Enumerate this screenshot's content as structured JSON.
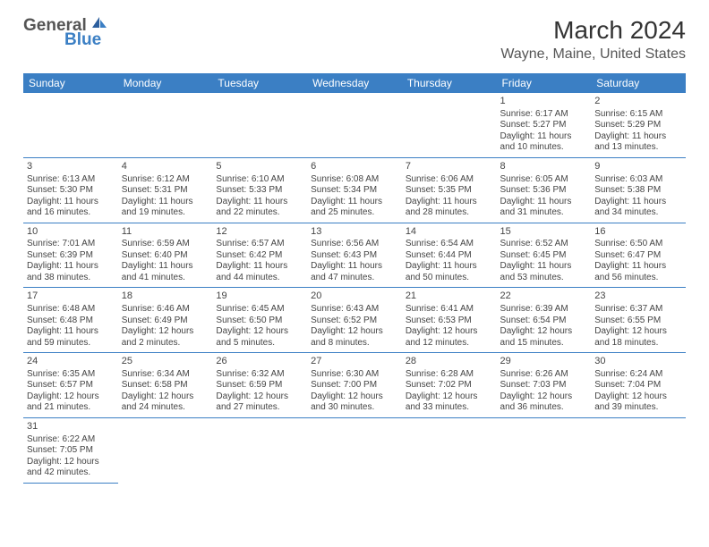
{
  "logo": {
    "text1": "General",
    "text2": "Blue"
  },
  "title": "March 2024",
  "location": "Wayne, Maine, United States",
  "colors": {
    "header_bg": "#3b7fc4",
    "header_text": "#ffffff",
    "border": "#3b7fc4",
    "body_text": "#444444",
    "title_text": "#333333",
    "logo_gray": "#555555",
    "logo_blue": "#3b7fc4",
    "page_bg": "#ffffff"
  },
  "typography": {
    "title_fontsize": 28,
    "location_fontsize": 16,
    "dayheader_fontsize": 12,
    "cell_fontsize": 10,
    "daynum_fontsize": 11,
    "logo_fontsize": 19
  },
  "day_headers": [
    "Sunday",
    "Monday",
    "Tuesday",
    "Wednesday",
    "Thursday",
    "Friday",
    "Saturday"
  ],
  "weeks": [
    [
      null,
      null,
      null,
      null,
      null,
      {
        "n": "1",
        "sunrise": "Sunrise: 6:17 AM",
        "sunset": "Sunset: 5:27 PM",
        "daylight": "Daylight: 11 hours and 10 minutes."
      },
      {
        "n": "2",
        "sunrise": "Sunrise: 6:15 AM",
        "sunset": "Sunset: 5:29 PM",
        "daylight": "Daylight: 11 hours and 13 minutes."
      }
    ],
    [
      {
        "n": "3",
        "sunrise": "Sunrise: 6:13 AM",
        "sunset": "Sunset: 5:30 PM",
        "daylight": "Daylight: 11 hours and 16 minutes."
      },
      {
        "n": "4",
        "sunrise": "Sunrise: 6:12 AM",
        "sunset": "Sunset: 5:31 PM",
        "daylight": "Daylight: 11 hours and 19 minutes."
      },
      {
        "n": "5",
        "sunrise": "Sunrise: 6:10 AM",
        "sunset": "Sunset: 5:33 PM",
        "daylight": "Daylight: 11 hours and 22 minutes."
      },
      {
        "n": "6",
        "sunrise": "Sunrise: 6:08 AM",
        "sunset": "Sunset: 5:34 PM",
        "daylight": "Daylight: 11 hours and 25 minutes."
      },
      {
        "n": "7",
        "sunrise": "Sunrise: 6:06 AM",
        "sunset": "Sunset: 5:35 PM",
        "daylight": "Daylight: 11 hours and 28 minutes."
      },
      {
        "n": "8",
        "sunrise": "Sunrise: 6:05 AM",
        "sunset": "Sunset: 5:36 PM",
        "daylight": "Daylight: 11 hours and 31 minutes."
      },
      {
        "n": "9",
        "sunrise": "Sunrise: 6:03 AM",
        "sunset": "Sunset: 5:38 PM",
        "daylight": "Daylight: 11 hours and 34 minutes."
      }
    ],
    [
      {
        "n": "10",
        "sunrise": "Sunrise: 7:01 AM",
        "sunset": "Sunset: 6:39 PM",
        "daylight": "Daylight: 11 hours and 38 minutes."
      },
      {
        "n": "11",
        "sunrise": "Sunrise: 6:59 AM",
        "sunset": "Sunset: 6:40 PM",
        "daylight": "Daylight: 11 hours and 41 minutes."
      },
      {
        "n": "12",
        "sunrise": "Sunrise: 6:57 AM",
        "sunset": "Sunset: 6:42 PM",
        "daylight": "Daylight: 11 hours and 44 minutes."
      },
      {
        "n": "13",
        "sunrise": "Sunrise: 6:56 AM",
        "sunset": "Sunset: 6:43 PM",
        "daylight": "Daylight: 11 hours and 47 minutes."
      },
      {
        "n": "14",
        "sunrise": "Sunrise: 6:54 AM",
        "sunset": "Sunset: 6:44 PM",
        "daylight": "Daylight: 11 hours and 50 minutes."
      },
      {
        "n": "15",
        "sunrise": "Sunrise: 6:52 AM",
        "sunset": "Sunset: 6:45 PM",
        "daylight": "Daylight: 11 hours and 53 minutes."
      },
      {
        "n": "16",
        "sunrise": "Sunrise: 6:50 AM",
        "sunset": "Sunset: 6:47 PM",
        "daylight": "Daylight: 11 hours and 56 minutes."
      }
    ],
    [
      {
        "n": "17",
        "sunrise": "Sunrise: 6:48 AM",
        "sunset": "Sunset: 6:48 PM",
        "daylight": "Daylight: 11 hours and 59 minutes."
      },
      {
        "n": "18",
        "sunrise": "Sunrise: 6:46 AM",
        "sunset": "Sunset: 6:49 PM",
        "daylight": "Daylight: 12 hours and 2 minutes."
      },
      {
        "n": "19",
        "sunrise": "Sunrise: 6:45 AM",
        "sunset": "Sunset: 6:50 PM",
        "daylight": "Daylight: 12 hours and 5 minutes."
      },
      {
        "n": "20",
        "sunrise": "Sunrise: 6:43 AM",
        "sunset": "Sunset: 6:52 PM",
        "daylight": "Daylight: 12 hours and 8 minutes."
      },
      {
        "n": "21",
        "sunrise": "Sunrise: 6:41 AM",
        "sunset": "Sunset: 6:53 PM",
        "daylight": "Daylight: 12 hours and 12 minutes."
      },
      {
        "n": "22",
        "sunrise": "Sunrise: 6:39 AM",
        "sunset": "Sunset: 6:54 PM",
        "daylight": "Daylight: 12 hours and 15 minutes."
      },
      {
        "n": "23",
        "sunrise": "Sunrise: 6:37 AM",
        "sunset": "Sunset: 6:55 PM",
        "daylight": "Daylight: 12 hours and 18 minutes."
      }
    ],
    [
      {
        "n": "24",
        "sunrise": "Sunrise: 6:35 AM",
        "sunset": "Sunset: 6:57 PM",
        "daylight": "Daylight: 12 hours and 21 minutes."
      },
      {
        "n": "25",
        "sunrise": "Sunrise: 6:34 AM",
        "sunset": "Sunset: 6:58 PM",
        "daylight": "Daylight: 12 hours and 24 minutes."
      },
      {
        "n": "26",
        "sunrise": "Sunrise: 6:32 AM",
        "sunset": "Sunset: 6:59 PM",
        "daylight": "Daylight: 12 hours and 27 minutes."
      },
      {
        "n": "27",
        "sunrise": "Sunrise: 6:30 AM",
        "sunset": "Sunset: 7:00 PM",
        "daylight": "Daylight: 12 hours and 30 minutes."
      },
      {
        "n": "28",
        "sunrise": "Sunrise: 6:28 AM",
        "sunset": "Sunset: 7:02 PM",
        "daylight": "Daylight: 12 hours and 33 minutes."
      },
      {
        "n": "29",
        "sunrise": "Sunrise: 6:26 AM",
        "sunset": "Sunset: 7:03 PM",
        "daylight": "Daylight: 12 hours and 36 minutes."
      },
      {
        "n": "30",
        "sunrise": "Sunrise: 6:24 AM",
        "sunset": "Sunset: 7:04 PM",
        "daylight": "Daylight: 12 hours and 39 minutes."
      }
    ],
    [
      {
        "n": "31",
        "sunrise": "Sunrise: 6:22 AM",
        "sunset": "Sunset: 7:05 PM",
        "daylight": "Daylight: 12 hours and 42 minutes."
      },
      null,
      null,
      null,
      null,
      null,
      null
    ]
  ]
}
